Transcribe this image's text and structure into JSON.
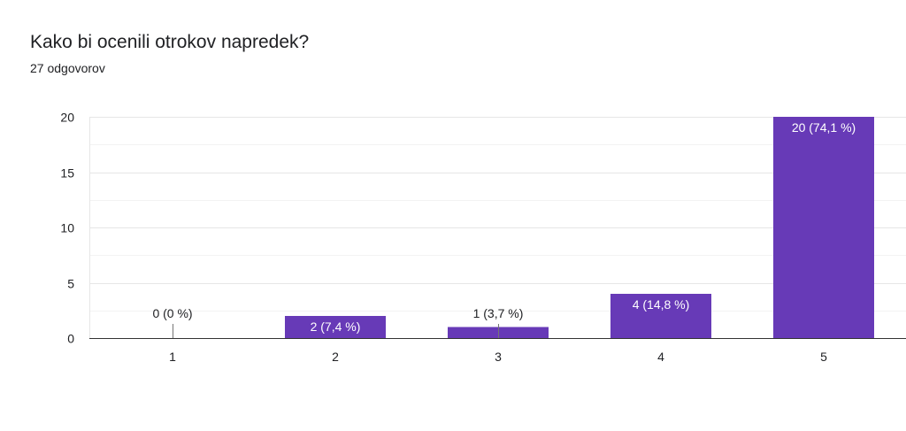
{
  "header": {
    "title": "Kako bi ocenili otrokov napredek?",
    "response_count": "27 odgovorov"
  },
  "colors": {
    "bar": "#673ab7",
    "grid": "#e6e6e6",
    "minor_grid": "#f3f3f3",
    "axis": "#333333",
    "text": "#202124",
    "label_inside": "#ffffff"
  },
  "chart_data": {
    "type": "bar",
    "title": "Kako bi ocenili otrokov napredek?",
    "subtitle": "27 odgovorov",
    "categories": [
      "1",
      "2",
      "3",
      "4",
      "5"
    ],
    "values": [
      0,
      2,
      1,
      4,
      20
    ],
    "data_labels": [
      "0 (0 %)",
      "2 (7,4 %)",
      "1 (3,7 %)",
      "4 (14,8 %)",
      "20 (74,1 %)"
    ],
    "xlabel": "",
    "ylabel": "",
    "ylim": [
      0,
      20
    ],
    "yticks": [
      0,
      5,
      10,
      15,
      20
    ],
    "grid": true,
    "legend": "none"
  }
}
